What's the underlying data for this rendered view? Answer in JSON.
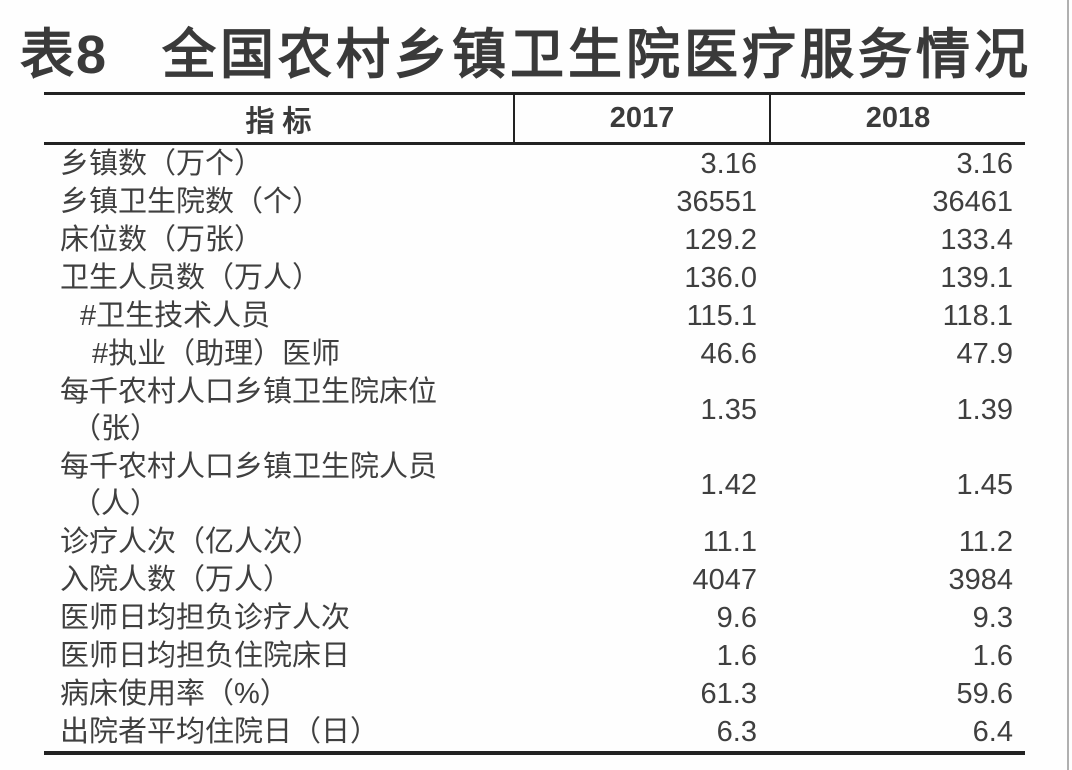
{
  "title": {
    "label": "表8",
    "text": "全国农村乡镇卫生院医疗服务情况"
  },
  "table": {
    "columns": [
      "指 标",
      "2017",
      "2018"
    ],
    "rows": [
      {
        "label": "乡镇数（万个）",
        "label2": "",
        "indent": 0,
        "v2017": "3.16",
        "v2018": "3.16"
      },
      {
        "label": "乡镇卫生院数（个）",
        "label2": "",
        "indent": 0,
        "v2017": "36551",
        "v2018": "36461"
      },
      {
        "label": "床位数（万张）",
        "label2": "",
        "indent": 0,
        "v2017": "129.2",
        "v2018": "133.4"
      },
      {
        "label": "卫生人员数（万人）",
        "label2": "",
        "indent": 0,
        "v2017": "136.0",
        "v2018": "139.1"
      },
      {
        "label": "#卫生技术人员",
        "label2": "",
        "indent": 1,
        "v2017": "115.1",
        "v2018": "118.1"
      },
      {
        "label": "#执业（助理）医师",
        "label2": "",
        "indent": 2,
        "v2017": "46.6",
        "v2018": "47.9"
      },
      {
        "label": "每千农村人口乡镇卫生院床位",
        "label2": "（张）",
        "indent": 0,
        "v2017": "1.35",
        "v2018": "1.39"
      },
      {
        "label": "每千农村人口乡镇卫生院人员",
        "label2": "（人）",
        "indent": 0,
        "v2017": "1.42",
        "v2018": "1.45"
      },
      {
        "label": "诊疗人次（亿人次）",
        "label2": "",
        "indent": 0,
        "v2017": "11.1",
        "v2018": "11.2"
      },
      {
        "label": "入院人数（万人）",
        "label2": "",
        "indent": 0,
        "v2017": "4047",
        "v2018": "3984"
      },
      {
        "label": "医师日均担负诊疗人次",
        "label2": "",
        "indent": 0,
        "v2017": "9.6",
        "v2018": "9.3"
      },
      {
        "label": "医师日均担负住院床日",
        "label2": "",
        "indent": 0,
        "v2017": "1.6",
        "v2018": "1.6"
      },
      {
        "label": "病床使用率（%）",
        "label2": "",
        "indent": 0,
        "v2017": "61.3",
        "v2018": "59.6"
      },
      {
        "label": "出院者平均住院日（日）",
        "label2": "",
        "indent": 0,
        "v2017": "6.3",
        "v2018": "6.4"
      }
    ]
  },
  "colors": {
    "text": "#3f3f3f",
    "border": "#222222",
    "scan_edge_line": "#b0b0b0",
    "background": "#fefefe"
  }
}
